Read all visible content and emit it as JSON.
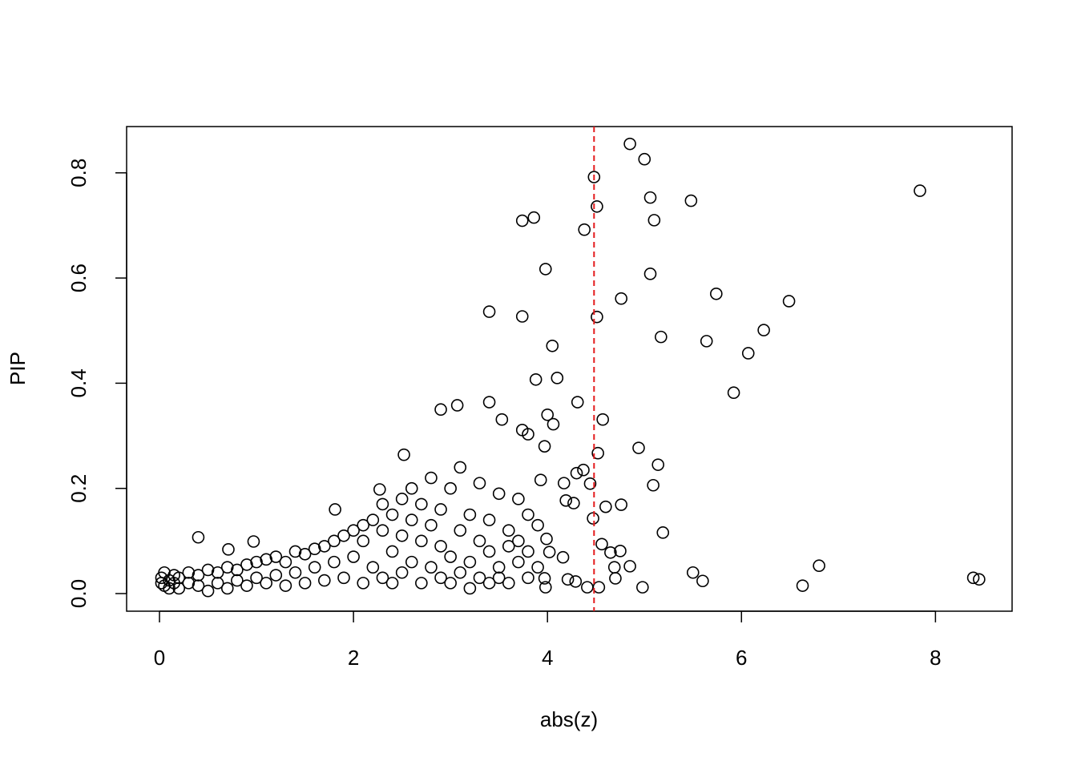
{
  "chart_data": {
    "type": "scatter",
    "xlabel": "abs(z)",
    "ylabel": "PIP",
    "x": [
      4.85,
      5.0,
      4.48,
      5.06,
      5.48,
      7.84,
      4.51,
      5.1,
      3.74,
      3.86,
      4.38,
      3.98,
      5.06,
      5.74,
      4.76,
      6.49,
      3.4,
      3.74,
      4.51,
      6.23,
      5.17,
      5.64,
      4.05,
      6.07,
      3.88,
      4.1,
      5.92,
      3.4,
      4.31,
      2.9,
      3.07,
      4.0,
      4.06,
      4.57,
      3.53,
      4.94,
      3.97,
      4.52,
      5.14,
      5.09,
      4.76,
      4.6,
      4.47,
      5.19,
      1.81,
      0.4,
      0.97,
      0.71,
      5.5,
      5.6,
      6.8,
      6.63,
      8.39,
      8.45,
      4.98,
      4.69,
      4.85,
      4.65,
      4.75,
      4.56,
      4.7,
      4.53,
      4.41,
      4.29,
      4.21,
      3.98,
      3.97,
      3.99,
      4.02,
      4.16,
      4.17,
      4.19,
      4.27,
      4.44,
      4.37,
      4.3,
      3.8,
      3.74,
      3.93,
      2.52,
      2.27,
      0.02,
      0.02,
      0.05,
      0.05,
      0.1,
      0.1,
      0.15,
      0.15,
      0.2,
      0.2,
      0.3,
      0.3,
      0.4,
      0.4,
      0.5,
      0.5,
      0.6,
      0.6,
      0.7,
      0.7,
      0.8,
      0.8,
      0.9,
      0.9,
      1.0,
      1.0,
      1.1,
      1.1,
      1.2,
      1.2,
      1.3,
      1.3,
      1.4,
      1.4,
      1.5,
      1.5,
      1.6,
      1.6,
      1.7,
      1.7,
      1.8,
      1.8,
      1.9,
      1.9,
      2.0,
      2.0,
      2.1,
      2.1,
      2.1,
      2.2,
      2.2,
      2.3,
      2.3,
      2.3,
      2.4,
      2.4,
      2.4,
      2.5,
      2.5,
      2.5,
      2.6,
      2.6,
      2.6,
      2.7,
      2.7,
      2.7,
      2.8,
      2.8,
      2.8,
      2.9,
      2.9,
      2.9,
      3.0,
      3.0,
      3.0,
      3.1,
      3.1,
      3.1,
      3.2,
      3.2,
      3.2,
      3.3,
      3.3,
      3.3,
      3.4,
      3.4,
      3.4,
      3.5,
      3.5,
      3.5,
      3.6,
      3.6,
      3.6,
      3.7,
      3.7,
      3.7,
      3.8,
      3.8,
      3.8,
      3.9,
      3.9
    ],
    "values": [
      0.855,
      0.826,
      0.792,
      0.753,
      0.747,
      0.766,
      0.736,
      0.71,
      0.709,
      0.715,
      0.692,
      0.617,
      0.608,
      0.57,
      0.561,
      0.556,
      0.536,
      0.527,
      0.526,
      0.501,
      0.488,
      0.48,
      0.471,
      0.457,
      0.407,
      0.41,
      0.382,
      0.364,
      0.364,
      0.35,
      0.358,
      0.34,
      0.322,
      0.331,
      0.331,
      0.277,
      0.28,
      0.267,
      0.245,
      0.206,
      0.169,
      0.165,
      0.143,
      0.116,
      0.16,
      0.107,
      0.099,
      0.084,
      0.04,
      0.024,
      0.053,
      0.015,
      0.03,
      0.027,
      0.012,
      0.05,
      0.052,
      0.078,
      0.081,
      0.094,
      0.029,
      0.012,
      0.012,
      0.023,
      0.027,
      0.012,
      0.029,
      0.104,
      0.079,
      0.069,
      0.21,
      0.177,
      0.172,
      0.209,
      0.235,
      0.229,
      0.303,
      0.311,
      0.216,
      0.264,
      0.198,
      0.03,
      0.02,
      0.015,
      0.04,
      0.025,
      0.01,
      0.035,
      0.02,
      0.01,
      0.03,
      0.02,
      0.04,
      0.015,
      0.035,
      0.005,
      0.045,
      0.02,
      0.04,
      0.01,
      0.05,
      0.025,
      0.045,
      0.015,
      0.055,
      0.03,
      0.06,
      0.02,
      0.065,
      0.035,
      0.07,
      0.015,
      0.06,
      0.04,
      0.08,
      0.02,
      0.075,
      0.05,
      0.085,
      0.025,
      0.09,
      0.06,
      0.1,
      0.03,
      0.11,
      0.07,
      0.12,
      0.02,
      0.1,
      0.13,
      0.05,
      0.14,
      0.03,
      0.12,
      0.17,
      0.08,
      0.15,
      0.02,
      0.04,
      0.18,
      0.11,
      0.06,
      0.14,
      0.2,
      0.02,
      0.1,
      0.17,
      0.05,
      0.13,
      0.22,
      0.03,
      0.09,
      0.16,
      0.07,
      0.2,
      0.02,
      0.04,
      0.12,
      0.24,
      0.06,
      0.15,
      0.01,
      0.03,
      0.1,
      0.21,
      0.08,
      0.14,
      0.02,
      0.05,
      0.19,
      0.03,
      0.09,
      0.12,
      0.02,
      0.06,
      0.1,
      0.18,
      0.03,
      0.08,
      0.15,
      0.05,
      0.13
    ],
    "color": "#000000",
    "xlim": [
      -0.339,
      8.79
    ],
    "ylim": [
      -0.0335,
      0.888
    ],
    "xticks": [
      0,
      2,
      4,
      6,
      8
    ],
    "yticks": [
      {
        "value": 0,
        "label": "0.0"
      },
      0.2,
      0.4,
      0.6,
      0.8
    ],
    "reference_line": {
      "x": 4.48,
      "color": "#e31a1c"
    }
  }
}
